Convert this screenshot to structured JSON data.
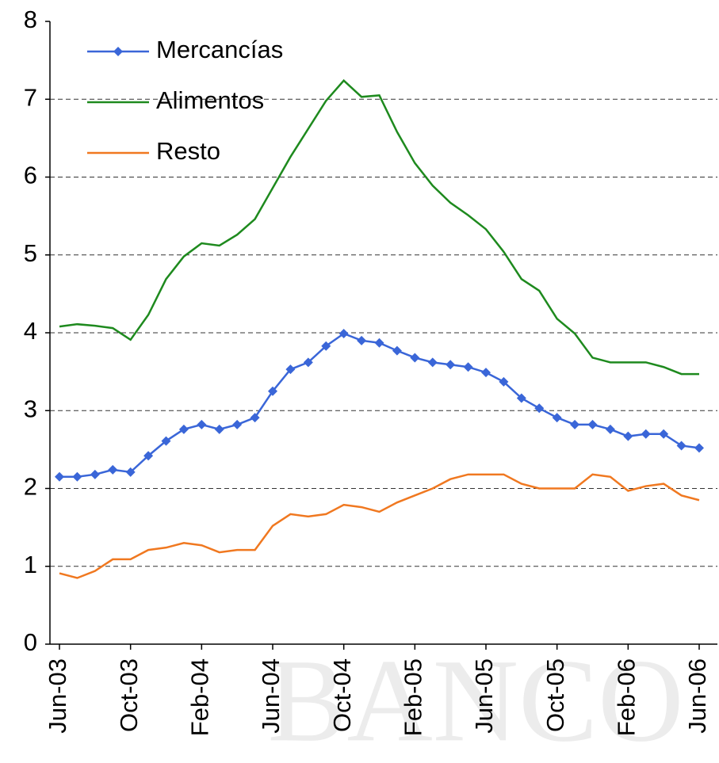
{
  "chart_data": {
    "type": "line",
    "watermark": "BANCO",
    "categories": [
      "Jun-03",
      null,
      null,
      null,
      "Oct-03",
      null,
      null,
      null,
      "Feb-04",
      null,
      null,
      null,
      "Jun-04",
      null,
      null,
      null,
      "Oct-04",
      null,
      null,
      null,
      "Feb-05",
      null,
      null,
      null,
      "Jun-05",
      null,
      null,
      null,
      "Oct-05",
      null,
      null,
      null,
      "Feb-06",
      null,
      null,
      null,
      "Jun-06"
    ],
    "series": [
      {
        "name": "Mercancías",
        "color": "#3a66d8",
        "marker": "diamond",
        "values": [
          2.15,
          2.15,
          2.18,
          2.24,
          2.21,
          2.42,
          2.61,
          2.76,
          2.82,
          2.76,
          2.82,
          2.91,
          3.25,
          3.53,
          3.62,
          3.83,
          3.99,
          3.9,
          3.87,
          3.77,
          3.68,
          3.62,
          3.59,
          3.56,
          3.49,
          3.37,
          3.16,
          3.03,
          2.91,
          2.82,
          2.82,
          2.76,
          2.67,
          2.7,
          2.7,
          2.55,
          2.52
        ]
      },
      {
        "name": "Alimentos",
        "color": "#1e8a1e",
        "values": [
          4.08,
          4.11,
          4.09,
          4.06,
          3.91,
          4.23,
          4.69,
          4.98,
          5.15,
          5.12,
          5.26,
          5.46,
          5.86,
          6.26,
          6.62,
          6.98,
          7.24,
          7.03,
          7.05,
          6.58,
          6.18,
          5.89,
          5.67,
          5.51,
          5.33,
          5.04,
          4.69,
          4.54,
          4.18,
          3.99,
          3.68,
          3.62,
          3.62,
          3.62,
          3.56,
          3.47,
          3.47
        ]
      },
      {
        "name": "Resto",
        "color": "#f07820",
        "values": [
          0.91,
          0.85,
          0.94,
          1.09,
          1.09,
          1.21,
          1.24,
          1.3,
          1.27,
          1.18,
          1.21,
          1.21,
          1.52,
          1.67,
          1.64,
          1.67,
          1.79,
          1.76,
          1.7,
          1.82,
          1.91,
          2.0,
          2.12,
          2.18,
          2.18,
          2.18,
          2.06,
          2.0,
          2.0,
          2.0,
          2.18,
          2.15,
          1.97,
          2.03,
          2.06,
          1.91,
          1.85
        ]
      }
    ],
    "ylim": [
      0,
      8
    ],
    "yticks": [
      0,
      1,
      2,
      3,
      4,
      5,
      6,
      7,
      8
    ],
    "grid": true
  }
}
